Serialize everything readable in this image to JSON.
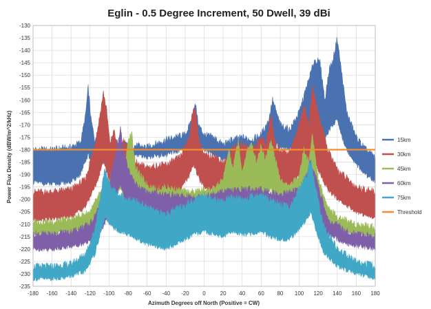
{
  "chart_data": {
    "type": "area",
    "title": "Eglin - 0.5 Degree Increment, 50 Dwell, 39 dBi",
    "xlabel": "Azimuth Degrees off North (Positive = CW)",
    "ylabel": "Power Flux Density (dBW/m^2/kHz)",
    "xlim": [
      -180,
      180
    ],
    "ylim": [
      -235,
      -130
    ],
    "x_ticks": [
      -180,
      -160,
      -140,
      -120,
      -100,
      -80,
      -60,
      -40,
      -20,
      0,
      20,
      40,
      60,
      80,
      100,
      120,
      140,
      160,
      180
    ],
    "y_ticks": [
      -130,
      -135,
      -140,
      -145,
      -150,
      -155,
      -160,
      -165,
      -170,
      -175,
      -180,
      -185,
      -190,
      -195,
      -200,
      -205,
      -210,
      -215,
      -220,
      -225,
      -230,
      -235
    ],
    "grid": true,
    "legend_position": "right",
    "threshold": {
      "name": "Threshold",
      "value": -180,
      "color": "#f28e2b"
    },
    "series": [
      {
        "name": "15km",
        "color": "#4a72b0",
        "x": [
          -180,
          -160,
          -140,
          -130,
          -125,
          -122,
          -119,
          -115,
          -105,
          -95,
          -80,
          -60,
          -40,
          -20,
          -15,
          -12,
          -9,
          -6,
          0,
          10,
          20,
          30,
          40,
          50,
          60,
          68,
          72,
          80,
          90,
          100,
          110,
          116,
          122,
          127,
          132,
          135,
          140,
          145,
          150,
          160,
          170,
          180
        ],
        "top": [
          -180,
          -180,
          -179,
          -177,
          -167,
          -155,
          -168,
          -176,
          -179,
          -177,
          -178,
          -179,
          -176,
          -174,
          -170,
          -165,
          -162,
          -170,
          -174,
          -175,
          -178,
          -176,
          -175,
          -176,
          -174,
          -168,
          -160,
          -170,
          -172,
          -165,
          -152,
          -144,
          -145,
          -160,
          -147,
          -145,
          -135,
          -150,
          -165,
          -175,
          -180,
          -183
        ],
        "bottom": [
          -193,
          -194,
          -193,
          -190,
          -185,
          -182,
          -185,
          -190,
          -185,
          -180,
          -182,
          -183,
          -182,
          -180,
          -178,
          -175,
          -173,
          -178,
          -180,
          -182,
          -184,
          -182,
          -181,
          -182,
          -181,
          -178,
          -176,
          -179,
          -180,
          -176,
          -170,
          -166,
          -168,
          -175,
          -172,
          -170,
          -168,
          -175,
          -180,
          -186,
          -190,
          -193
        ]
      },
      {
        "name": "30km",
        "color": "#c0504d",
        "x": [
          -180,
          -160,
          -140,
          -125,
          -115,
          -110,
          -106,
          -103,
          -99,
          -95,
          -90,
          -85,
          -80,
          -70,
          -60,
          -40,
          -25,
          -15,
          -11,
          -8,
          -5,
          0,
          5,
          10,
          20,
          25,
          30,
          40,
          50,
          55,
          60,
          65,
          70,
          75,
          80,
          90,
          100,
          105,
          110,
          114,
          120,
          130,
          140,
          160,
          180
        ],
        "top": [
          -197,
          -197,
          -196,
          -192,
          -178,
          -167,
          -157,
          -163,
          -178,
          -172,
          -182,
          -176,
          -179,
          -186,
          -187,
          -186,
          -183,
          -174,
          -162,
          -168,
          -177,
          -182,
          -183,
          -182,
          -185,
          -184,
          -179,
          -178,
          -180,
          -178,
          -175,
          -178,
          -166,
          -178,
          -180,
          -181,
          -170,
          -162,
          -170,
          -155,
          -165,
          -180,
          -188,
          -195,
          -197
        ],
        "bottom": [
          -208,
          -208,
          -207,
          -203,
          -195,
          -190,
          -184,
          -188,
          -194,
          -190,
          -196,
          -192,
          -194,
          -198,
          -199,
          -198,
          -196,
          -190,
          -186,
          -189,
          -192,
          -195,
          -196,
          -195,
          -197,
          -196,
          -193,
          -192,
          -194,
          -192,
          -190,
          -192,
          -188,
          -193,
          -194,
          -195,
          -190,
          -186,
          -190,
          -183,
          -188,
          -196,
          -200,
          -205,
          -208
        ]
      },
      {
        "name": "45km",
        "color": "#9bbb59",
        "x": [
          -180,
          -160,
          -140,
          -120,
          -110,
          -100,
          -92,
          -88,
          -84,
          -80,
          -76,
          -72,
          -68,
          -60,
          -50,
          -40,
          -30,
          -20,
          -10,
          0,
          10,
          20,
          26,
          30,
          36,
          40,
          45,
          50,
          55,
          60,
          64,
          70,
          75,
          80,
          90,
          100,
          105,
          110,
          114,
          120,
          130,
          140,
          160,
          180
        ],
        "top": [
          -209,
          -209,
          -208,
          -205,
          -198,
          -192,
          -186,
          -178,
          -190,
          -176,
          -174,
          -187,
          -190,
          -194,
          -196,
          -195,
          -196,
          -197,
          -197,
          -196,
          -196,
          -192,
          -180,
          -188,
          -176,
          -190,
          -180,
          -178,
          -185,
          -178,
          -184,
          -176,
          -184,
          -192,
          -195,
          -190,
          -180,
          -185,
          -174,
          -192,
          -203,
          -207,
          -210,
          -211
        ],
        "bottom": [
          -214,
          -214,
          -213,
          -211,
          -207,
          -202,
          -198,
          -195,
          -201,
          -194,
          -193,
          -200,
          -202,
          -205,
          -206,
          -206,
          -207,
          -208,
          -208,
          -207,
          -207,
          -204,
          -198,
          -202,
          -196,
          -203,
          -198,
          -197,
          -201,
          -197,
          -200,
          -196,
          -200,
          -204,
          -206,
          -203,
          -198,
          -201,
          -195,
          -204,
          -210,
          -212,
          -214,
          -215
        ]
      },
      {
        "name": "60km",
        "color": "#7f5fa8",
        "x": [
          -180,
          -160,
          -140,
          -120,
          -110,
          -100,
          -92,
          -88,
          -84,
          -80,
          -70,
          -60,
          -40,
          -20,
          0,
          20,
          40,
          60,
          80,
          100,
          106,
          112,
          118,
          130,
          150,
          180
        ],
        "top": [
          -214,
          -214,
          -213,
          -210,
          -203,
          -194,
          -180,
          -172,
          -182,
          -188,
          -195,
          -197,
          -198,
          -199,
          -199,
          -197,
          -196,
          -196,
          -198,
          -196,
          -192,
          -185,
          -192,
          -208,
          -213,
          -215
        ],
        "bottom": [
          -220,
          -220,
          -219,
          -217,
          -213,
          -207,
          -198,
          -194,
          -199,
          -202,
          -206,
          -208,
          -208,
          -209,
          -209,
          -207,
          -206,
          -206,
          -207,
          -206,
          -204,
          -200,
          -204,
          -214,
          -218,
          -220
        ]
      },
      {
        "name": "75km",
        "color": "#41a7c6",
        "x": [
          -180,
          -160,
          -140,
          -125,
          -115,
          -108,
          -104,
          -100,
          -90,
          -80,
          -70,
          -60,
          -50,
          -40,
          -30,
          -20,
          -10,
          0,
          10,
          20,
          30,
          40,
          50,
          60,
          70,
          80,
          90,
          100,
          108,
          112,
          116,
          125,
          140,
          160,
          180
        ],
        "top": [
          -227,
          -227,
          -226,
          -222,
          -212,
          -196,
          -188,
          -194,
          -198,
          -200,
          -201,
          -203,
          -205,
          -206,
          -204,
          -202,
          -200,
          -198,
          -200,
          -201,
          -199,
          -200,
          -199,
          -198,
          -200,
          -202,
          -203,
          -196,
          -190,
          -184,
          -193,
          -210,
          -220,
          -225,
          -227
        ],
        "bottom": [
          -232,
          -232,
          -231,
          -229,
          -222,
          -212,
          -207,
          -210,
          -213,
          -214,
          -216,
          -218,
          -219,
          -220,
          -218,
          -216,
          -214,
          -213,
          -214,
          -215,
          -213,
          -214,
          -214,
          -213,
          -215,
          -216,
          -216,
          -212,
          -208,
          -205,
          -210,
          -221,
          -227,
          -230,
          -232
        ]
      }
    ]
  }
}
